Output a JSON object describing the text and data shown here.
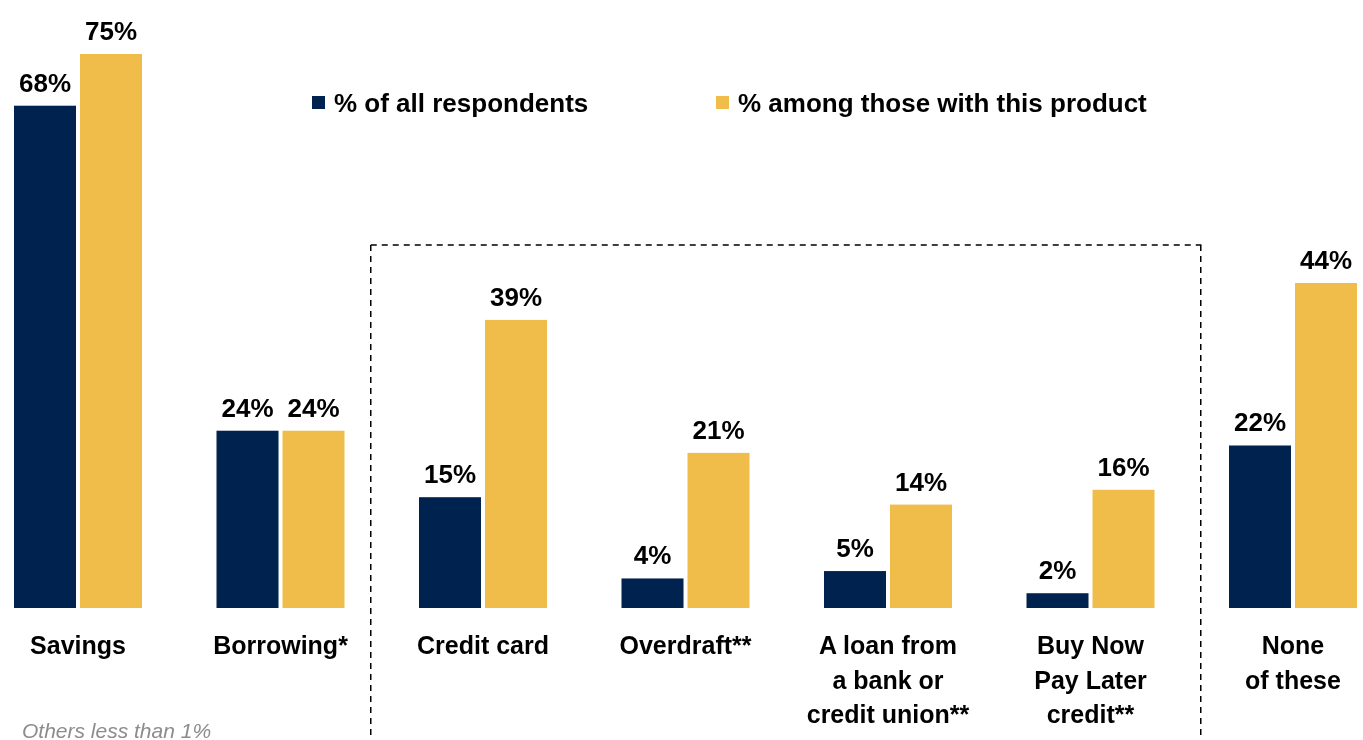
{
  "chart_data": {
    "type": "bar",
    "categories": [
      "Savings",
      "Borrowing*",
      "Credit card",
      "Overdraft**",
      "A loan from\na bank or\ncredit union**",
      "Buy Now\nPay Later\ncredit**",
      "None\nof these"
    ],
    "series": [
      {
        "name": "% of all respondents",
        "color": "#00224f",
        "values": [
          68,
          24,
          15,
          4,
          5,
          2,
          22
        ],
        "value_labels": [
          "68%",
          "24%",
          "15%",
          "4%",
          "5%",
          "2%",
          "22%"
        ]
      },
      {
        "name": "% among those with this product",
        "color": "#f0bd4b",
        "values": [
          75,
          24,
          39,
          21,
          14,
          16,
          44
        ],
        "value_labels": [
          "75%",
          "24%",
          "39%",
          "21%",
          "14%",
          "16%",
          "44%"
        ]
      }
    ],
    "legend": "top",
    "annotations": [
      "Others less than 1%"
    ]
  }
}
